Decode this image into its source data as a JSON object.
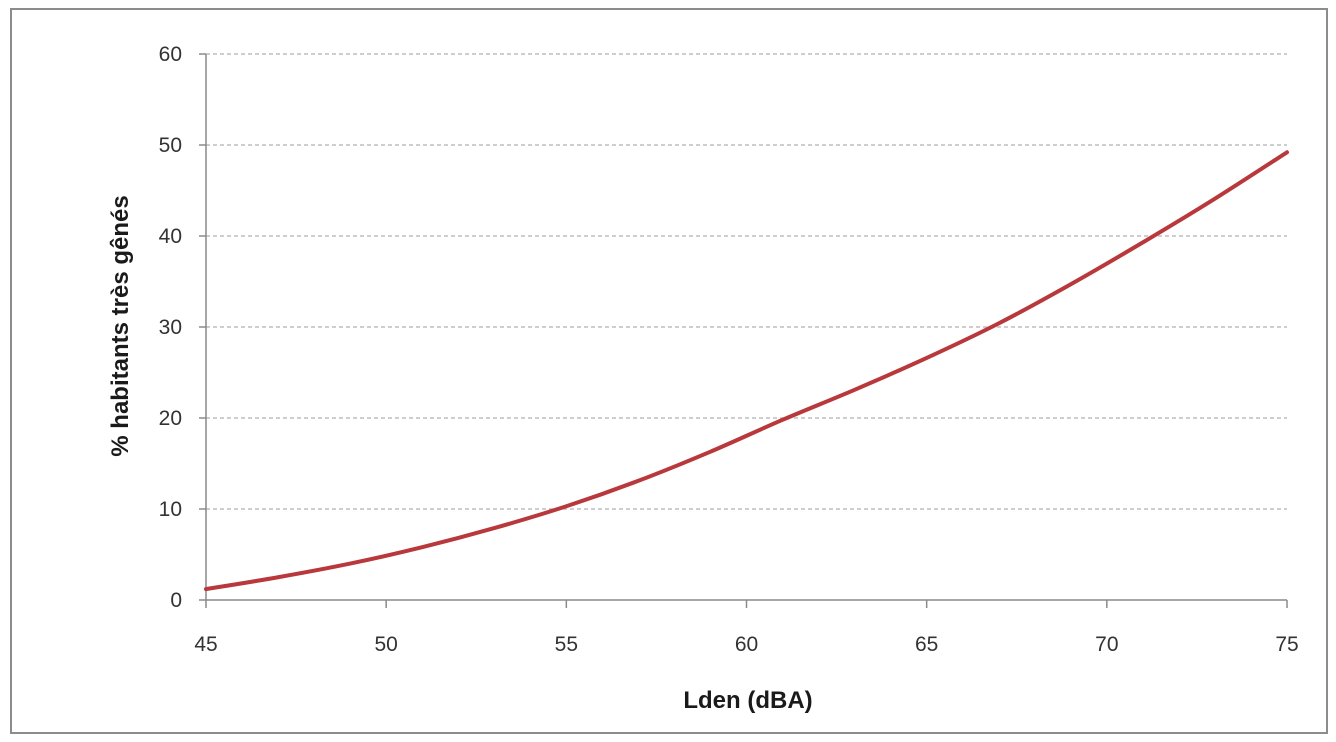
{
  "chart_data": {
    "type": "line",
    "xlabel": "Lden (dBA)",
    "ylabel": "% habitants très gênés",
    "xlim": [
      45,
      75
    ],
    "ylim": [
      0,
      60
    ],
    "x_ticks": [
      45,
      50,
      55,
      60,
      65,
      70,
      75
    ],
    "y_ticks": [
      0,
      10,
      20,
      30,
      40,
      50,
      60
    ],
    "grid": "horizontal dashed",
    "legend": "none",
    "series": [
      {
        "color": "#b8383c",
        "x": [
          45,
          47,
          49,
          51,
          53,
          55,
          57,
          59,
          61,
          63,
          65,
          67,
          69,
          71,
          73,
          75
        ],
        "y": [
          1.2,
          2.5,
          4.0,
          5.8,
          7.9,
          10.3,
          13.1,
          16.3,
          19.8,
          23.1,
          26.6,
          30.4,
          34.7,
          39.3,
          44.1,
          49.2
        ]
      }
    ]
  }
}
